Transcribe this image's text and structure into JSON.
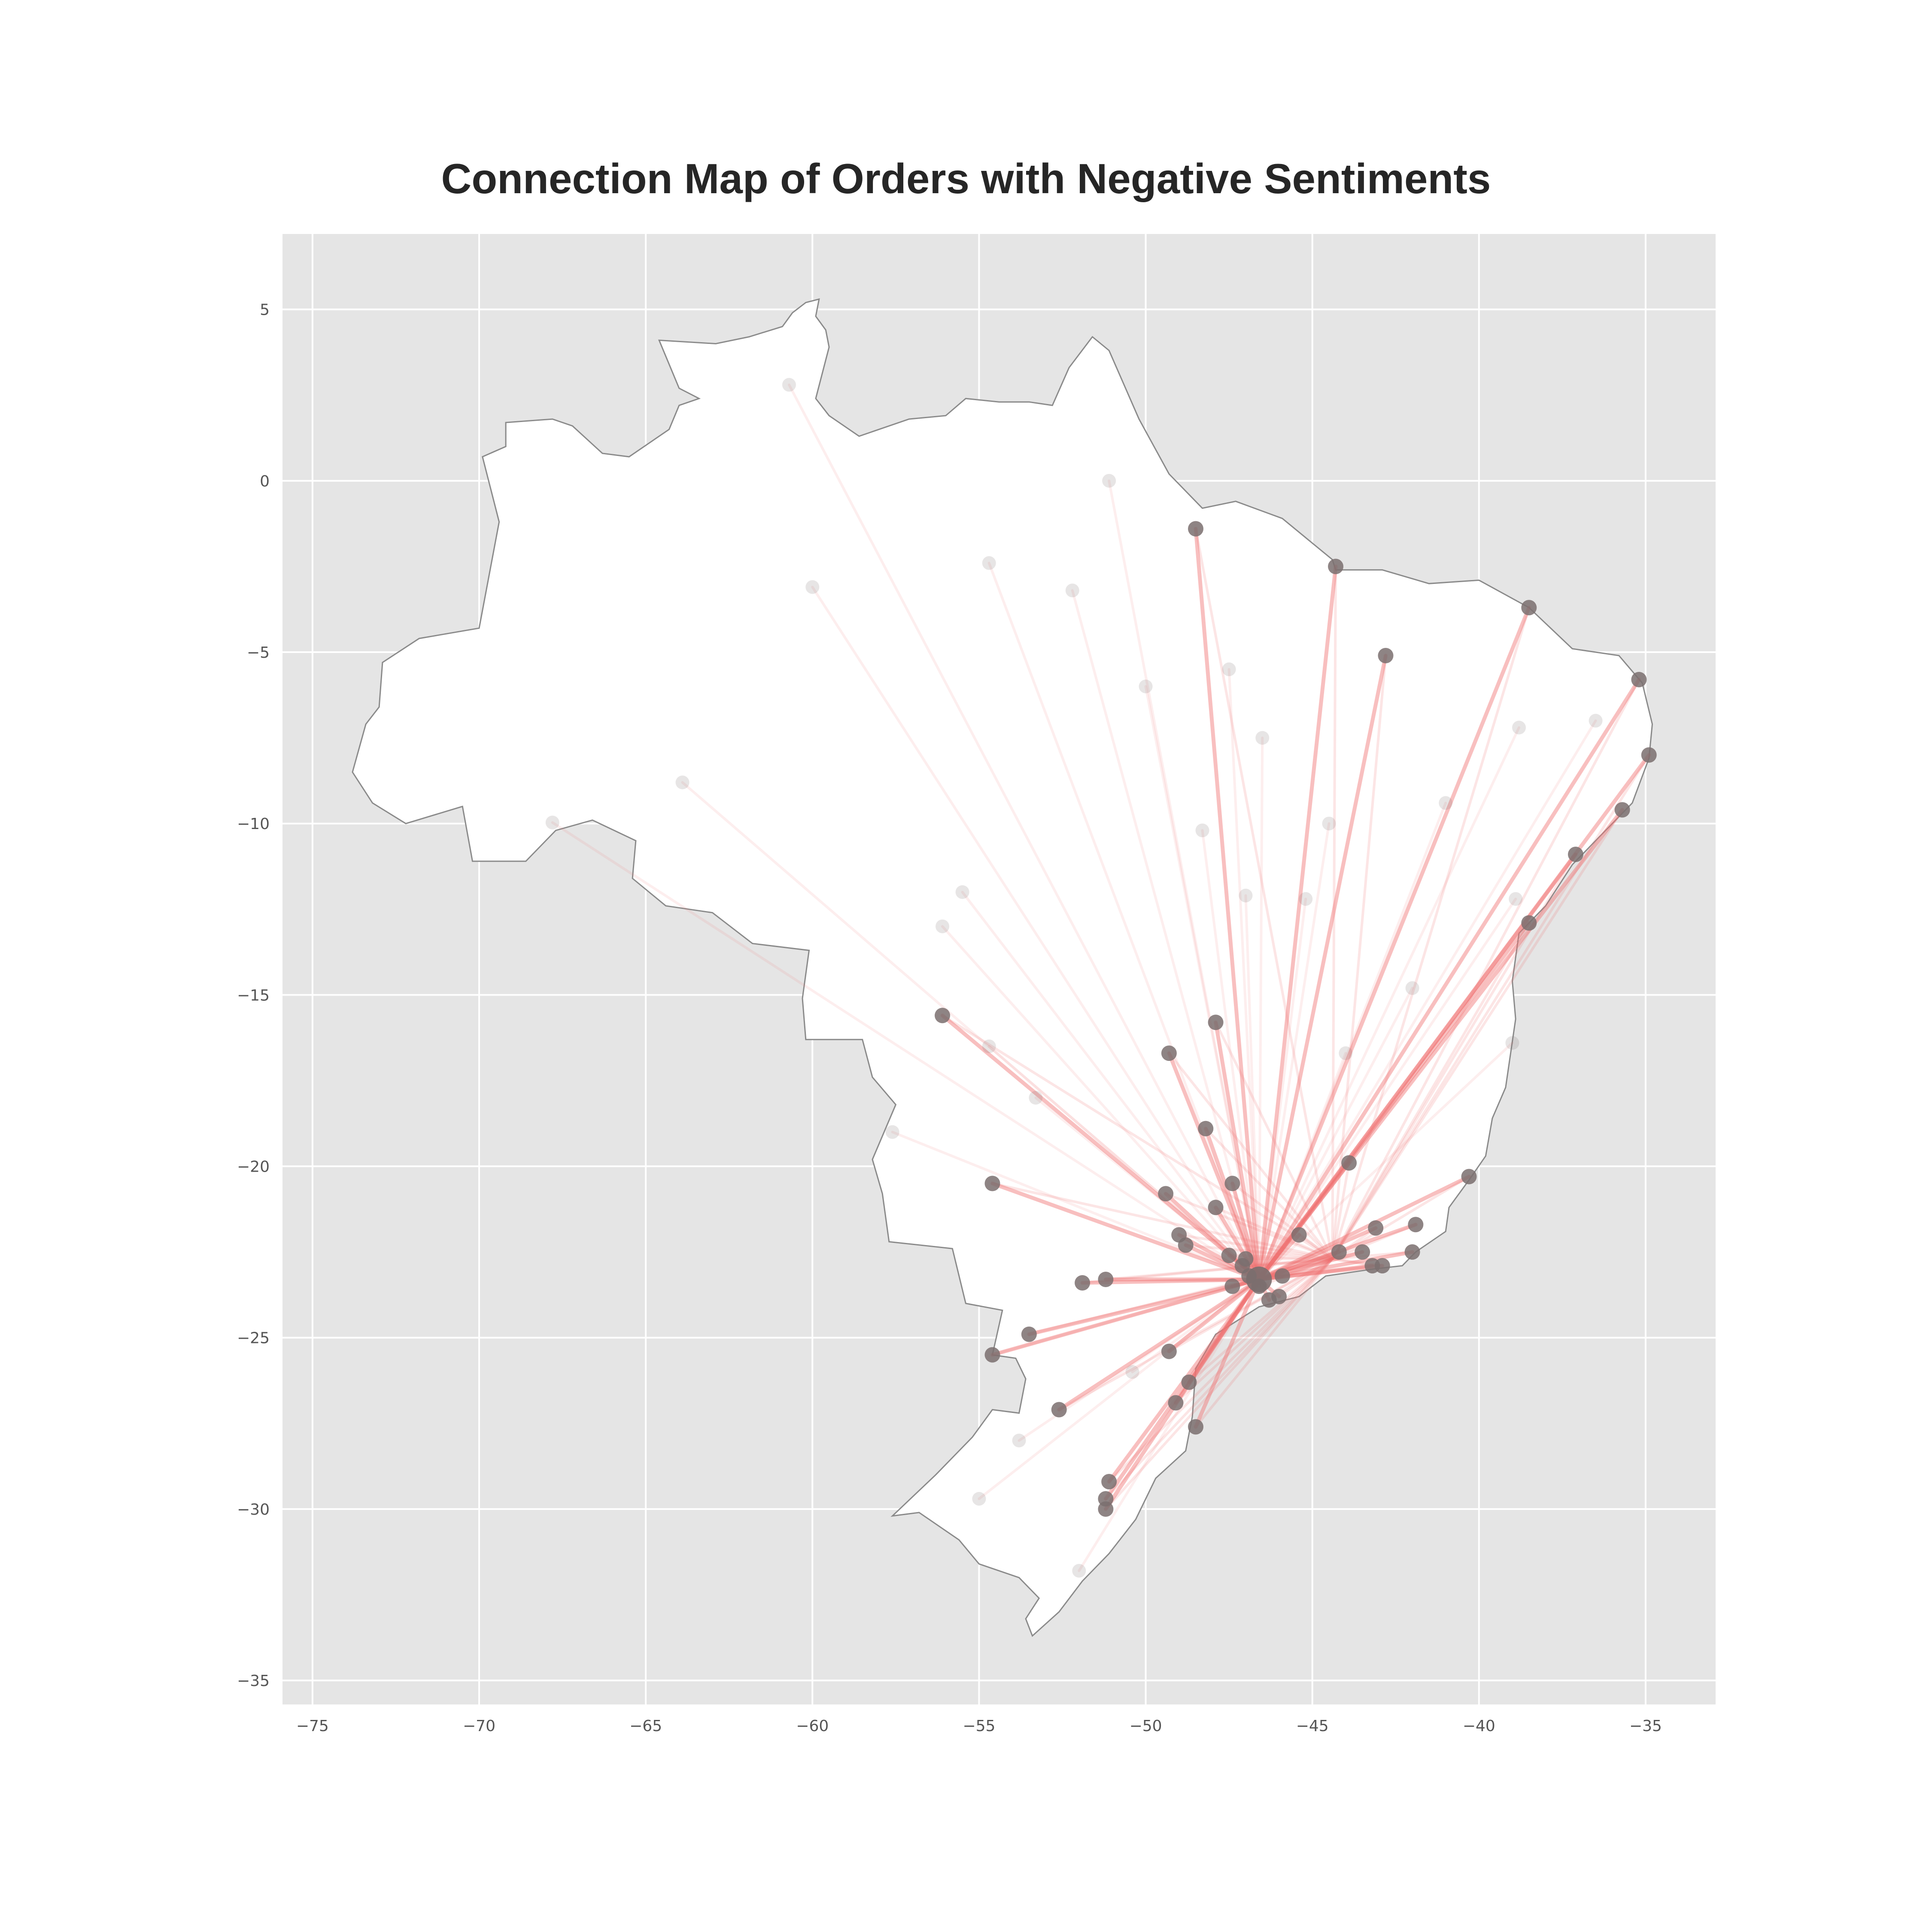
{
  "chart_data": {
    "type": "scatter",
    "title": "Connection Map of Orders with Negative Sentiments",
    "xlabel": "",
    "ylabel": "",
    "xlim": [
      -75.9,
      -32.9
    ],
    "ylim": [
      -35.7,
      7.2
    ],
    "xticks": [
      -75,
      -70,
      -65,
      -60,
      -55,
      -50,
      -45,
      -40,
      -35
    ],
    "yticks": [
      5,
      0,
      -5,
      -10,
      -15,
      -20,
      -25,
      -30,
      -35
    ],
    "grid": true,
    "legend": "none",
    "colors": {
      "background": "#e5e5e5",
      "land": "#ffffff",
      "border": "#8a8a8a",
      "connection": "#f07070",
      "location": "#7a6e6e",
      "grid": "#ffffff"
    },
    "hub": [
      -46.6,
      -23.3
    ],
    "strong_locations": [
      [
        -48.5,
        -1.4
      ],
      [
        -44.3,
        -2.5
      ],
      [
        -38.5,
        -3.7
      ],
      [
        -42.8,
        -5.1
      ],
      [
        -35.2,
        -5.8
      ],
      [
        -34.9,
        -8.0
      ],
      [
        -35.7,
        -9.6
      ],
      [
        -37.1,
        -10.9
      ],
      [
        -38.5,
        -12.9
      ],
      [
        -56.1,
        -15.6
      ],
      [
        -47.9,
        -15.8
      ],
      [
        -49.3,
        -16.7
      ],
      [
        -48.2,
        -18.9
      ],
      [
        -43.9,
        -19.9
      ],
      [
        -40.3,
        -20.3
      ],
      [
        -54.6,
        -20.5
      ],
      [
        -49.4,
        -20.8
      ],
      [
        -47.4,
        -20.5
      ],
      [
        -42.9,
        -22.9
      ],
      [
        -43.2,
        -22.9
      ],
      [
        -51.9,
        -23.4
      ],
      [
        -51.2,
        -23.3
      ],
      [
        -47.1,
        -22.9
      ],
      [
        -46.6,
        -23.5
      ],
      [
        -46.3,
        -23.9
      ],
      [
        -49.3,
        -25.4
      ],
      [
        -54.6,
        -25.5
      ],
      [
        -53.5,
        -24.9
      ],
      [
        -48.7,
        -26.3
      ],
      [
        -48.5,
        -27.6
      ],
      [
        -49.1,
        -26.9
      ],
      [
        -52.6,
        -27.1
      ],
      [
        -51.2,
        -30.0
      ],
      [
        -51.1,
        -29.2
      ],
      [
        -51.2,
        -29.7
      ],
      [
        -47.0,
        -22.7
      ],
      [
        -45.9,
        -23.2
      ],
      [
        -47.9,
        -21.2
      ],
      [
        -48.8,
        -22.3
      ],
      [
        -44.2,
        -22.5
      ],
      [
        -42.0,
        -22.5
      ],
      [
        -41.9,
        -21.7
      ],
      [
        -43.1,
        -21.8
      ],
      [
        -45.4,
        -22.0
      ],
      [
        -49.0,
        -22.0
      ],
      [
        -47.5,
        -22.6
      ],
      [
        -46.9,
        -23.2
      ],
      [
        -47.4,
        -23.5
      ],
      [
        -46.0,
        -23.8
      ],
      [
        -43.5,
        -22.5
      ]
    ],
    "faint_locations": [
      [
        -60.7,
        2.8
      ],
      [
        -51.1,
        0.0
      ],
      [
        -60.0,
        -3.1
      ],
      [
        -54.7,
        -2.4
      ],
      [
        -52.2,
        -3.2
      ],
      [
        -63.9,
        -8.8
      ],
      [
        -67.8,
        -9.97
      ],
      [
        -47.5,
        -5.5
      ],
      [
        -48.3,
        -10.2
      ],
      [
        -47.0,
        -12.1
      ],
      [
        -45.2,
        -12.2
      ],
      [
        -44.0,
        -16.7
      ],
      [
        -54.7,
        -16.5
      ],
      [
        -55.5,
        -12.0
      ],
      [
        -38.9,
        -12.2
      ],
      [
        -39.0,
        -16.4
      ],
      [
        -42.0,
        -14.8
      ],
      [
        -57.6,
        -19.0
      ],
      [
        -50.4,
        -26.0
      ],
      [
        -53.8,
        -28.0
      ],
      [
        -55.0,
        -29.7
      ],
      [
        -52.0,
        -31.8
      ],
      [
        -44.5,
        -10.0
      ],
      [
        -41.0,
        -9.4
      ],
      [
        -38.8,
        -7.2
      ],
      [
        -36.5,
        -7.0
      ],
      [
        -50.0,
        -6.0
      ],
      [
        -46.5,
        -7.5
      ],
      [
        -53.3,
        -18.0
      ],
      [
        -56.1,
        -13.0
      ]
    ]
  }
}
